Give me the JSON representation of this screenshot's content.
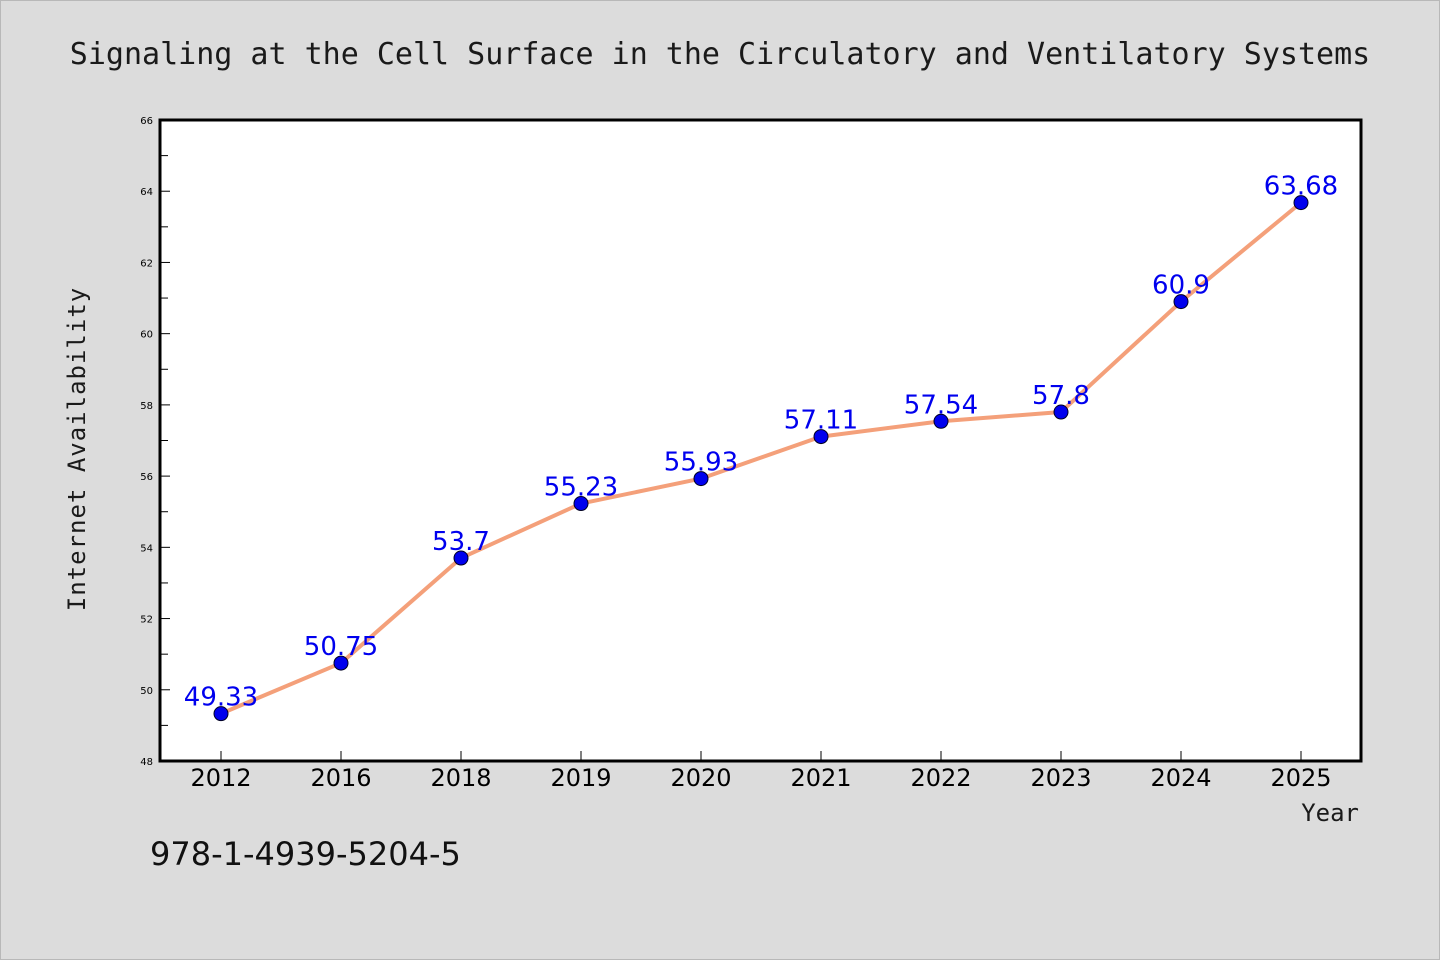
{
  "chart_data": {
    "type": "line",
    "title": "Signaling at the Cell Surface in the Circulatory and Ventilatory Systems",
    "xlabel": "Year",
    "ylabel": "Internet Availability",
    "categories": [
      "2012",
      "2016",
      "2018",
      "2019",
      "2020",
      "2021",
      "2022",
      "2023",
      "2024",
      "2025"
    ],
    "series": [
      {
        "values": [
          49.33,
          50.75,
          53.7,
          55.23,
          55.93,
          57.11,
          57.54,
          57.8,
          60.9,
          63.68
        ],
        "labels": [
          "49.33",
          "50.75",
          "53.7",
          "55.23",
          "55.93",
          "57.11",
          "57.54",
          "57.8",
          "60.9",
          "63.68"
        ]
      }
    ],
    "ylim": [
      48,
      66
    ],
    "yticks": [
      "48",
      "50",
      "52",
      "54",
      "56",
      "58",
      "60",
      "62",
      "64",
      "66"
    ],
    "grid": false,
    "line_color": "#f4a07a",
    "marker_color": "#0000ee",
    "label_color": "#0000ee"
  },
  "footer": {
    "isbn": "978-1-4939-5204-5"
  }
}
